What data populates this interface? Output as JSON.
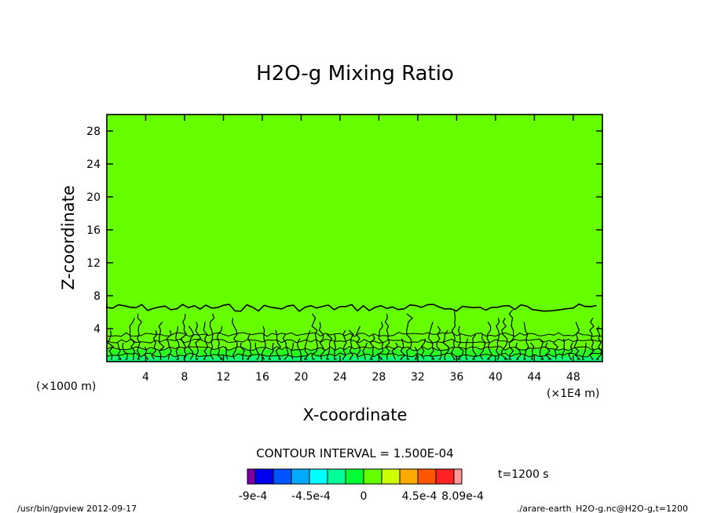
{
  "chart_data": {
    "type": "contour",
    "title": "H2O-g Mixing Ratio",
    "xlabel": "X-coordinate",
    "ylabel": "Z-coordinate",
    "x_unit_note": "(×1E4 m)",
    "y_unit_note": "(×1000 m)",
    "xlim": [
      0,
      51
    ],
    "ylim": [
      0,
      30
    ],
    "xticks": [
      4,
      8,
      12,
      16,
      20,
      24,
      28,
      32,
      36,
      40,
      44,
      48
    ],
    "yticks": [
      4,
      8,
      12,
      16,
      20,
      24,
      28
    ],
    "boundary_layer_top": 7,
    "background_color": "#66ff00",
    "contour_interval_text": "CONTOUR INTERVAL = 1.500E-04",
    "time_text": "t=1200 s",
    "colorbar": {
      "colors": [
        "#7a00a6",
        "#0000ee",
        "#0055ff",
        "#00aaff",
        "#00ffff",
        "#00ff99",
        "#00ff33",
        "#66ff00",
        "#ccff00",
        "#ffaa00",
        "#ff5500",
        "#ff2222",
        "#ff9999"
      ],
      "labels": [
        "-9e-4",
        "-4.5e-4",
        "0",
        "4.5e-4",
        "8.09e-4"
      ]
    }
  },
  "footer": {
    "left": "/usr/bin/gpview  2012-09-17",
    "right": "./arare-earth_H2O-g.nc@H2O-g,t=1200"
  }
}
